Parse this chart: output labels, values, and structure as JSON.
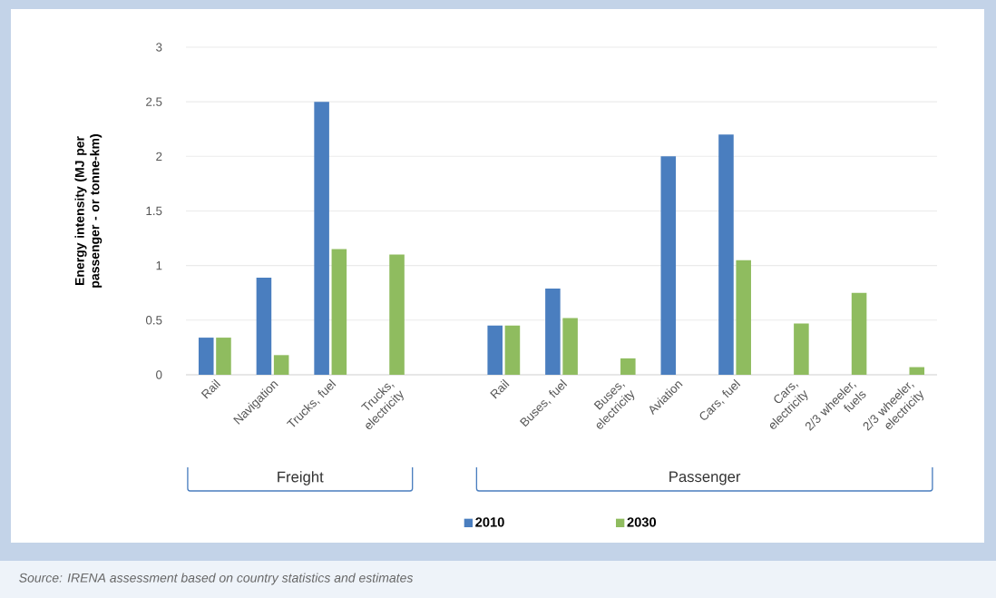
{
  "chart_data": {
    "type": "bar",
    "ylabel": "Energy intensity (MJ per passenger - or tonne-km)",
    "categories": [
      "Rail",
      "Navigation",
      "Trucks, fuel",
      "Trucks, electricity",
      null,
      "Rail",
      "Buses, fuel",
      "Buses, electricity",
      "Aviation",
      "Cars, fuel",
      "Cars, electricity",
      "2/3 wheeler, fuels",
      "2/3 wheeler, electricity"
    ],
    "series": [
      {
        "name": "2010",
        "color": "#4a7ebf",
        "values": [
          0.34,
          0.89,
          2.5,
          null,
          null,
          0.45,
          0.79,
          null,
          2,
          2.2,
          null,
          null,
          null
        ]
      },
      {
        "name": "2030",
        "color": "#8fbc5f",
        "values": [
          0.34,
          0.18,
          1.15,
          1.1,
          null,
          0.45,
          0.52,
          0.15,
          null,
          1.05,
          0.47,
          0.75,
          0.07
        ]
      }
    ],
    "ylim": [
      0,
      3
    ],
    "yticks": [
      0,
      0.5,
      1,
      1.5,
      2,
      2.5,
      3
    ],
    "grid": "y",
    "legend": "bottom",
    "annotations": [
      "Freight",
      "Passenger",
      "Source: IRENA assessment based on country statistics and estimates"
    ]
  }
}
